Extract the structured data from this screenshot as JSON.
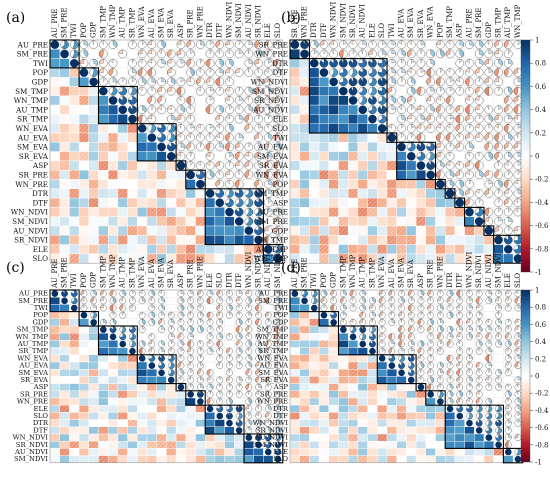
{
  "chart_data": [
    {
      "type": "heatmap",
      "panel_label": "(a)",
      "variables": [
        "AU_PRE",
        "SM_PRE",
        "TWI",
        "POP",
        "GDP",
        "SM_TMP",
        "WN_TMP",
        "AU_TMP",
        "SR_TMP",
        "WN_EVA",
        "AU_EVA",
        "SM_EVA",
        "SR_EVA",
        "ASP",
        "SR_PRE",
        "WN_PRE",
        "DTR",
        "DTF",
        "WN_NDVI",
        "SM_NDVI",
        "AU_NDVI",
        "SR_NDVI",
        "ELE",
        "SLO"
      ],
      "blocks": [
        [
          0,
          1,
          2
        ],
        [
          3,
          4
        ],
        [
          5,
          6,
          7,
          8
        ],
        [
          9,
          10,
          11,
          12
        ],
        [
          13
        ],
        [
          14,
          15
        ],
        [
          16,
          17,
          18,
          19,
          20,
          21
        ],
        [
          22,
          23
        ]
      ]
    },
    {
      "type": "heatmap",
      "panel_label": "(b)",
      "variables": [
        "SR_PRE",
        "WN_PRE",
        "DTR",
        "DTF",
        "WN_NDVI",
        "SM_NDVI",
        "SR_NDVI",
        "AU_NDVI",
        "ELE",
        "SLO",
        "TWI",
        "AU_EVA",
        "SM_EVA",
        "SR_EVA",
        "WN_EVA",
        "POP",
        "SM_TMP",
        "ASP",
        "AU_PRE",
        "SM_PRE",
        "GDP",
        "SR_TMP",
        "AU_TMP",
        "WN_TMP"
      ],
      "blocks": [
        [
          0,
          1
        ],
        [
          2,
          3,
          4,
          5,
          6,
          7,
          8,
          9
        ],
        [
          10
        ],
        [
          11,
          12,
          13,
          14
        ],
        [
          15
        ],
        [
          16
        ],
        [
          17
        ],
        [
          18,
          19
        ],
        [
          20
        ],
        [
          21,
          22,
          23
        ]
      ]
    },
    {
      "type": "heatmap",
      "panel_label": "(c)",
      "variables": [
        "AU_PRE",
        "SM_PRE",
        "TWI",
        "POP",
        "GDP",
        "SM_TMP",
        "WN_TMP",
        "AU_TMP",
        "SR_TMP",
        "WN_EVA",
        "AU_EVA",
        "SM_EVA",
        "SR_EVA",
        "ASP",
        "SR_PRE",
        "WN_PRE",
        "ELE",
        "SLO",
        "DTR",
        "DTF",
        "WN_NDVI",
        "SR_NDVI",
        "AU_NDVI",
        "SM_NDVI"
      ],
      "blocks": [
        [
          0,
          1,
          2
        ],
        [
          3,
          4
        ],
        [
          5,
          6,
          7,
          8
        ],
        [
          9,
          10,
          11,
          12
        ],
        [
          13
        ],
        [
          14,
          15
        ],
        [
          16,
          17,
          18,
          19
        ],
        [
          20,
          21,
          22,
          23
        ]
      ]
    },
    {
      "type": "heatmap",
      "panel_label": "(d)",
      "variables": [
        "AU_PRE",
        "SM_PRE",
        "TWI",
        "POP",
        "GDP",
        "SM_TMP",
        "WN_TMP",
        "AU_TMP",
        "SR_TMP",
        "WN_EVA",
        "AU_EVA",
        "SM_EVA",
        "SR_EVA",
        "ASP",
        "SR_PRE",
        "WN_PRE",
        "DTR",
        "DTF",
        "WN_NDVI",
        "SR_NDVI",
        "AU_NDVI",
        "SM_NDVI",
        "ELE",
        "SLO"
      ],
      "blocks": [
        [
          0,
          1,
          2
        ],
        [
          3,
          4
        ],
        [
          5,
          6,
          7,
          8
        ],
        [
          9,
          10,
          11,
          12
        ],
        [
          13
        ],
        [
          14,
          15
        ],
        [
          16,
          17,
          18,
          19,
          20,
          21
        ],
        [
          22,
          23
        ]
      ]
    }
  ],
  "colorbar": {
    "ticks": [
      "1",
      "0.8",
      "0.6",
      "0.4",
      "0.2",
      "0",
      "-0.2",
      "-0.4",
      "-0.6",
      "-0.8",
      "-1"
    ],
    "range": [
      -1,
      1
    ],
    "stops": [
      "#67001f",
      "#b2182b",
      "#d6604d",
      "#f4a582",
      "#fddbc7",
      "#ffffff",
      "#d1e5f0",
      "#92c5de",
      "#4393c3",
      "#2166ac",
      "#053061"
    ]
  }
}
